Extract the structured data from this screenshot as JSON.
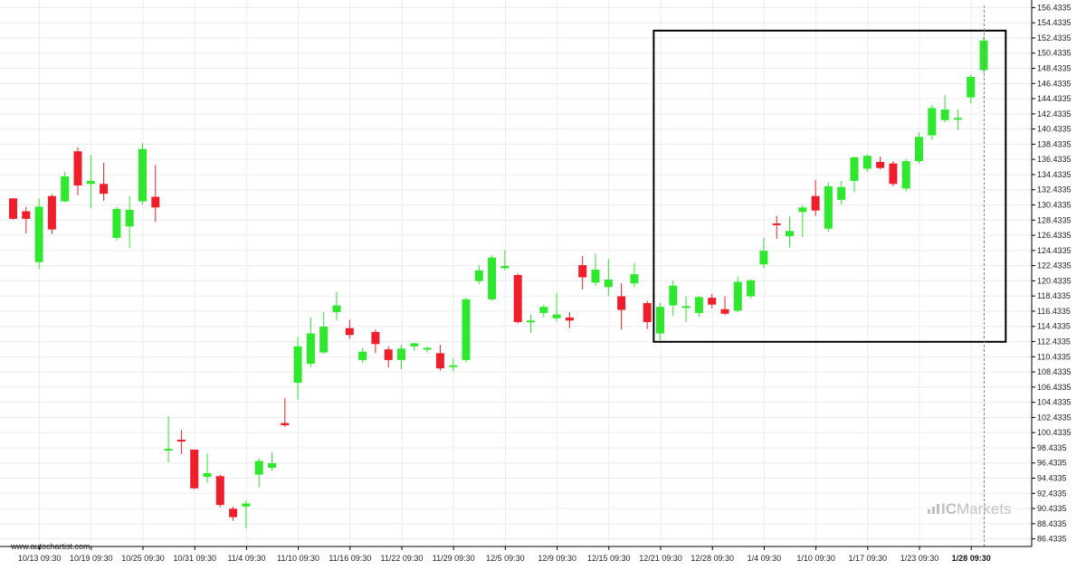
{
  "chart_data": {
    "type": "candlestick",
    "title": "",
    "xlabel": "",
    "ylabel": "",
    "ylim": [
      85.4335,
      157.4335
    ],
    "y_ticks": [
      "156.4335",
      "154.4335",
      "152.4335",
      "150.4335",
      "148.4335",
      "146.4335",
      "144.4335",
      "142.4335",
      "140.4335",
      "138.4335",
      "136.4335",
      "134.4335",
      "132.4335",
      "130.4335",
      "128.4335",
      "126.4335",
      "124.4335",
      "122.4335",
      "120.4335",
      "118.4335",
      "116.4335",
      "114.4335",
      "112.4335",
      "110.4335",
      "108.4335",
      "106.4335",
      "104.4335",
      "102.4335",
      "100.4335",
      "98.4335",
      "96.4335",
      "94.4335",
      "92.4335",
      "90.4335",
      "88.4335",
      "86.4335"
    ],
    "x_tick_labels": [
      "10/13 09:30",
      "10/19 09:30",
      "10/25 09:30",
      "10/31 09:30",
      "11/4 09:30",
      "11/10 09:30",
      "11/16 09:30",
      "11/22 09:30",
      "11/29 09:30",
      "12/5 09:30",
      "12/9 09:30",
      "12/15 09:30",
      "12/21 09:30",
      "12/28 09:30",
      "1/4 09:30",
      "1/10 09:30",
      "1/17 09:30",
      "1/23 09:30",
      "1/28 09:30"
    ],
    "x_tick_index": [
      2,
      6,
      10,
      14,
      18,
      22,
      26,
      30,
      34,
      38,
      42,
      46,
      50,
      54,
      58,
      62,
      66,
      70,
      74
    ],
    "highlight_tick": "1/28 09:30",
    "grid": true,
    "pattern_box": {
      "start_index": 49.5,
      "end_index": 76.7,
      "price_high": 153.4,
      "price_low": 112.4
    },
    "candles": [
      {
        "o": 131.3,
        "h": 131.3,
        "l": 128.5,
        "c": 128.6
      },
      {
        "o": 129.6,
        "h": 130.2,
        "l": 126.7,
        "c": 128.6
      },
      {
        "o": 122.9,
        "h": 131.3,
        "l": 122.0,
        "c": 130.2
      },
      {
        "o": 131.6,
        "h": 131.8,
        "l": 126.6,
        "c": 127.2
      },
      {
        "o": 130.9,
        "h": 134.8,
        "l": 130.8,
        "c": 134.2
      },
      {
        "o": 137.5,
        "h": 138.0,
        "l": 131.7,
        "c": 133.0
      },
      {
        "o": 133.2,
        "h": 137.0,
        "l": 130.0,
        "c": 133.6
      },
      {
        "o": 133.2,
        "h": 136.0,
        "l": 131.0,
        "c": 131.9
      },
      {
        "o": 126.1,
        "h": 130.2,
        "l": 125.7,
        "c": 129.9
      },
      {
        "o": 127.6,
        "h": 131.6,
        "l": 124.8,
        "c": 129.8
      },
      {
        "o": 130.9,
        "h": 138.6,
        "l": 130.5,
        "c": 137.8
      },
      {
        "o": 131.5,
        "h": 135.7,
        "l": 128.2,
        "c": 130.1
      },
      {
        "o": 98.2,
        "h": 102.6,
        "l": 96.5,
        "c": 98.3
      },
      {
        "o": 99.5,
        "h": 100.8,
        "l": 97.6,
        "c": 99.3
      },
      {
        "o": 98.2,
        "h": 98.2,
        "l": 93.0,
        "c": 93.1
      },
      {
        "o": 94.6,
        "h": 97.7,
        "l": 93.8,
        "c": 95.1
      },
      {
        "o": 94.7,
        "h": 94.9,
        "l": 90.6,
        "c": 90.9
      },
      {
        "o": 90.4,
        "h": 90.7,
        "l": 88.8,
        "c": 89.3
      },
      {
        "o": 90.7,
        "h": 91.5,
        "l": 87.8,
        "c": 91.1
      },
      {
        "o": 94.9,
        "h": 97.0,
        "l": 93.2,
        "c": 96.7
      },
      {
        "o": 95.8,
        "h": 97.8,
        "l": 95.4,
        "c": 96.4
      },
      {
        "o": 101.7,
        "h": 105.0,
        "l": 101.2,
        "c": 101.4
      },
      {
        "o": 107.0,
        "h": 113.0,
        "l": 104.8,
        "c": 111.8
      },
      {
        "o": 109.5,
        "h": 115.6,
        "l": 109.1,
        "c": 113.5
      },
      {
        "o": 111.0,
        "h": 116.3,
        "l": 110.8,
        "c": 114.4
      },
      {
        "o": 116.3,
        "h": 119.0,
        "l": 115.2,
        "c": 117.2
      },
      {
        "o": 114.2,
        "h": 115.3,
        "l": 112.8,
        "c": 113.3
      },
      {
        "o": 110.0,
        "h": 111.6,
        "l": 109.6,
        "c": 111.1
      },
      {
        "o": 113.7,
        "h": 114.0,
        "l": 110.9,
        "c": 112.1
      },
      {
        "o": 111.4,
        "h": 111.8,
        "l": 109.0,
        "c": 110.0
      },
      {
        "o": 110.0,
        "h": 112.0,
        "l": 108.8,
        "c": 111.5
      },
      {
        "o": 111.8,
        "h": 112.3,
        "l": 111.2,
        "c": 112.2
      },
      {
        "o": 111.5,
        "h": 111.8,
        "l": 111.0,
        "c": 111.6
      },
      {
        "o": 110.9,
        "h": 112.0,
        "l": 108.6,
        "c": 108.9
      },
      {
        "o": 109.2,
        "h": 110.2,
        "l": 108.5,
        "c": 109.3
      },
      {
        "o": 110.0,
        "h": 118.2,
        "l": 109.7,
        "c": 118.0
      },
      {
        "o": 120.4,
        "h": 122.5,
        "l": 120.0,
        "c": 121.8
      },
      {
        "o": 118.0,
        "h": 123.8,
        "l": 117.8,
        "c": 123.5
      },
      {
        "o": 122.1,
        "h": 124.5,
        "l": 121.8,
        "c": 122.4
      },
      {
        "o": 121.2,
        "h": 121.4,
        "l": 114.8,
        "c": 115.0
      },
      {
        "o": 115.0,
        "h": 116.0,
        "l": 113.6,
        "c": 115.2
      },
      {
        "o": 116.2,
        "h": 117.3,
        "l": 115.6,
        "c": 117.0
      },
      {
        "o": 115.5,
        "h": 118.8,
        "l": 115.1,
        "c": 116.0
      },
      {
        "o": 115.6,
        "h": 116.3,
        "l": 114.2,
        "c": 115.2
      },
      {
        "o": 122.5,
        "h": 123.7,
        "l": 119.3,
        "c": 120.9
      },
      {
        "o": 120.2,
        "h": 124.0,
        "l": 119.8,
        "c": 121.9
      },
      {
        "o": 119.6,
        "h": 123.3,
        "l": 118.4,
        "c": 120.6
      },
      {
        "o": 118.4,
        "h": 120.1,
        "l": 114.0,
        "c": 116.6
      },
      {
        "o": 120.1,
        "h": 122.8,
        "l": 119.6,
        "c": 121.3
      },
      {
        "o": 117.5,
        "h": 117.8,
        "l": 114.1,
        "c": 115.0
      },
      {
        "o": 113.5,
        "h": 117.5,
        "l": 112.6,
        "c": 117.0
      },
      {
        "o": 117.2,
        "h": 120.5,
        "l": 115.8,
        "c": 119.8
      },
      {
        "o": 117.0,
        "h": 118.4,
        "l": 115.0,
        "c": 117.1
      },
      {
        "o": 116.2,
        "h": 118.4,
        "l": 115.7,
        "c": 118.3
      },
      {
        "o": 118.2,
        "h": 118.7,
        "l": 116.8,
        "c": 117.3
      },
      {
        "o": 116.7,
        "h": 118.4,
        "l": 115.9,
        "c": 116.1
      },
      {
        "o": 116.5,
        "h": 121.0,
        "l": 116.3,
        "c": 120.3
      },
      {
        "o": 118.4,
        "h": 120.6,
        "l": 118.1,
        "c": 120.5
      },
      {
        "o": 122.6,
        "h": 126.1,
        "l": 122.1,
        "c": 124.4
      },
      {
        "o": 128.0,
        "h": 129.0,
        "l": 126.0,
        "c": 127.8
      },
      {
        "o": 126.3,
        "h": 128.9,
        "l": 124.8,
        "c": 127.0
      },
      {
        "o": 129.5,
        "h": 130.4,
        "l": 126.2,
        "c": 130.1
      },
      {
        "o": 131.6,
        "h": 133.7,
        "l": 129.0,
        "c": 129.7
      },
      {
        "o": 127.3,
        "h": 133.4,
        "l": 126.9,
        "c": 132.9
      },
      {
        "o": 131.1,
        "h": 133.6,
        "l": 130.5,
        "c": 132.8
      },
      {
        "o": 133.6,
        "h": 136.8,
        "l": 132.1,
        "c": 136.7
      },
      {
        "o": 135.2,
        "h": 137.1,
        "l": 134.8,
        "c": 136.9
      },
      {
        "o": 136.1,
        "h": 136.8,
        "l": 135.1,
        "c": 135.3
      },
      {
        "o": 135.9,
        "h": 136.2,
        "l": 132.9,
        "c": 133.2
      },
      {
        "o": 132.6,
        "h": 136.5,
        "l": 132.2,
        "c": 136.2
      },
      {
        "o": 136.2,
        "h": 140.0,
        "l": 135.9,
        "c": 139.4
      },
      {
        "o": 139.6,
        "h": 143.6,
        "l": 139.0,
        "c": 143.2
      },
      {
        "o": 141.6,
        "h": 144.9,
        "l": 141.3,
        "c": 143.0
      },
      {
        "o": 141.9,
        "h": 143.0,
        "l": 140.3,
        "c": 141.9
      },
      {
        "o": 144.6,
        "h": 147.6,
        "l": 143.8,
        "c": 147.3
      },
      {
        "o": 148.2,
        "h": 152.6,
        "l": 147.8,
        "c": 152.1
      }
    ]
  },
  "branding": {
    "credit": "www.autochartist.com",
    "logo_ic": "IC",
    "logo_rest": "Markets"
  },
  "colors": {
    "up": "#2ee82e",
    "down": "#ee1f2b",
    "grid": "#ececec",
    "box": "#000000",
    "vline": "#888888"
  }
}
